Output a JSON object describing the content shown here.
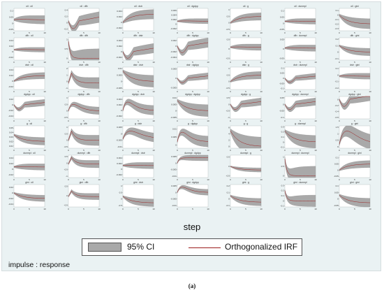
{
  "chart_data": {
    "type": "line",
    "rows": [
      "oil",
      "dfb",
      "dstr",
      "dgdpp",
      "g",
      "dunmpl",
      "gini"
    ],
    "cols": [
      "oil",
      "dfb",
      "dstr",
      "dgdpp",
      "g",
      "dunmpl",
      "gini"
    ],
    "x": [
      0,
      5,
      10
    ],
    "xlabel": "step",
    "legend": [
      "95% CI",
      "Orthogonalized IRF"
    ],
    "note": "impulse : response",
    "caption": "(a)",
    "colors": {
      "ci": "#a9a9a9",
      "irf": "#9b1c1c",
      "panel": "#ffffff",
      "background": "#eaf2f3"
    },
    "panels": [
      {
        "title": "oil : oil",
        "yticks": [
          "0.1",
          "0.05",
          "0",
          "-0.05"
        ],
        "ylim": [
          -0.06,
          0.12
        ],
        "shape": "flat",
        "amp": 0.06,
        "base": 0.02
      },
      {
        "title": "oil : dfb",
        "yticks": [
          "0.4",
          "0.2",
          "0",
          "-0.2"
        ],
        "ylim": [
          -0.25,
          0.45
        ],
        "shape": "dipRise",
        "amp": 0.3,
        "base": 0.05
      },
      {
        "title": "oil : dstr",
        "yticks": [
          "0.004",
          "0.002",
          "0",
          "-0.002"
        ],
        "ylim": [
          -0.003,
          0.005
        ],
        "shape": "rise",
        "amp": 0.003,
        "base": 0
      },
      {
        "title": "oil : dgdpp",
        "yticks": [
          "0.006",
          "0.004",
          "0.002",
          "0",
          "-0.002"
        ],
        "ylim": [
          -0.003,
          0.007
        ],
        "shape": "flat",
        "amp": 0.002,
        "base": 0.001
      },
      {
        "title": "oil : g",
        "yticks": [
          "1",
          "0.5",
          "0",
          "-0.5"
        ],
        "ylim": [
          -0.6,
          1.1
        ],
        "shape": "rise",
        "amp": 0.5,
        "base": 0
      },
      {
        "title": "oil : dunmpl",
        "yticks": [
          "0.1",
          "0.05",
          "0",
          "-0.05"
        ],
        "ylim": [
          -0.06,
          0.12
        ],
        "shape": "flat",
        "amp": 0.04,
        "base": 0.01
      },
      {
        "title": "oil : gini",
        "yticks": [
          "0.1",
          "0",
          "-0.1",
          "-0.2",
          "-0.3"
        ],
        "ylim": [
          -0.35,
          0.15
        ],
        "shape": "fall",
        "amp": 0.2,
        "base": 0
      },
      {
        "title": "dfb : oil",
        "yticks": [
          "0.04",
          "0.02",
          "0",
          "-0.02"
        ],
        "ylim": [
          -0.03,
          0.05
        ],
        "shape": "flat",
        "amp": 0.015,
        "base": 0.005
      },
      {
        "title": "dfb : dfb",
        "yticks": [
          "1",
          "0.5",
          "0"
        ],
        "ylim": [
          -0.1,
          1.1
        ],
        "shape": "drop",
        "amp": 0.9,
        "base": 0
      },
      {
        "title": "dfb : dstr",
        "yticks": [
          "0.004",
          "0.002",
          "0",
          "-0.002"
        ],
        "ylim": [
          -0.003,
          0.005
        ],
        "shape": "dipRise",
        "amp": 0.003,
        "base": 0
      },
      {
        "title": "dfb : dgdpp",
        "yticks": [
          "0.002",
          "0",
          "-0.002",
          "-0.004"
        ],
        "ylim": [
          -0.005,
          0.003
        ],
        "shape": "dipRise",
        "amp": 0.003,
        "base": 0
      },
      {
        "title": "dfb : g",
        "yticks": [
          "0.5",
          "0",
          "-0.5"
        ],
        "ylim": [
          -0.6,
          0.6
        ],
        "shape": "flat",
        "amp": 0.3,
        "base": 0.05
      },
      {
        "title": "dfb : dunmpl",
        "yticks": [
          "0.05",
          "0",
          "-0.05"
        ],
        "ylim": [
          -0.06,
          0.06
        ],
        "shape": "flat",
        "amp": 0.03,
        "base": 0
      },
      {
        "title": "dfb : gini",
        "yticks": [
          "0.2",
          "0.1",
          "0",
          "-0.1"
        ],
        "ylim": [
          -0.12,
          0.22
        ],
        "shape": "fall",
        "amp": 0.1,
        "base": 0.1
      },
      {
        "title": "dstr : oil",
        "yticks": [
          "0.04",
          "0.02",
          "0",
          "-0.02"
        ],
        "ylim": [
          -0.03,
          0.05
        ],
        "shape": "rise",
        "amp": 0.02,
        "base": 0
      },
      {
        "title": "dstr : dfb",
        "yticks": [
          "2",
          "1",
          "0",
          "-1"
        ],
        "ylim": [
          -1.2,
          2.2
        ],
        "shape": "spike",
        "amp": 1.5,
        "base": 0
      },
      {
        "title": "dstr : dstr",
        "yticks": [
          "0.01",
          "0.005",
          "0",
          "-0.005"
        ],
        "ylim": [
          -0.006,
          0.011
        ],
        "shape": "decay",
        "amp": 0.008,
        "base": 0
      },
      {
        "title": "dstr : dgdpp",
        "yticks": [
          "0.005",
          "0",
          "-0.005"
        ],
        "ylim": [
          -0.006,
          0.006
        ],
        "shape": "dipRise",
        "amp": 0.003,
        "base": 0
      },
      {
        "title": "dstr : g",
        "yticks": [
          "1",
          "0.5",
          "0",
          "-0.5"
        ],
        "ylim": [
          -0.6,
          1.1
        ],
        "shape": "rise",
        "amp": 0.5,
        "base": 0
      },
      {
        "title": "dstr : dunmpl",
        "yticks": [
          "0.1",
          "0.05",
          "0",
          "-0.05",
          "-0.1"
        ],
        "ylim": [
          -0.11,
          0.11
        ],
        "shape": "dipRise",
        "amp": 0.05,
        "base": 0
      },
      {
        "title": "dstr : gini",
        "yticks": [
          "0.1",
          "0",
          "-0.1",
          "-0.2"
        ],
        "ylim": [
          -0.22,
          0.12
        ],
        "shape": "flat",
        "amp": 0.08,
        "base": -0.03
      },
      {
        "title": "dgdpp : oil",
        "yticks": [
          "0.02",
          "0",
          "-0.02",
          "-0.04"
        ],
        "ylim": [
          -0.05,
          0.03
        ],
        "shape": "dipRise",
        "amp": 0.02,
        "base": 0
      },
      {
        "title": "dgdpp : dfb",
        "yticks": [
          "1",
          "0.5",
          "0",
          "-0.5"
        ],
        "ylim": [
          -0.6,
          1.1
        ],
        "shape": "humpDecay",
        "amp": 0.5,
        "base": 0
      },
      {
        "title": "dgdpp : dstr",
        "yticks": [
          "0.004",
          "0.002",
          "0",
          "-0.002"
        ],
        "ylim": [
          -0.003,
          0.005
        ],
        "shape": "humpDecay",
        "amp": 0.003,
        "base": 0
      },
      {
        "title": "dgdpp : dgdpp",
        "yticks": [
          "0.01",
          "0.005",
          "0",
          "-0.005"
        ],
        "ylim": [
          -0.006,
          0.011
        ],
        "shape": "decay",
        "amp": 0.008,
        "base": 0
      },
      {
        "title": "dgdpp : g",
        "yticks": [
          "0.5",
          "0",
          "-0.5",
          "-1"
        ],
        "ylim": [
          -1.1,
          0.6
        ],
        "shape": "dipRise",
        "amp": 0.5,
        "base": 0
      },
      {
        "title": "dgdpp : dunmpl",
        "yticks": [
          "0.05",
          "0",
          "-0.05",
          "-0.1"
        ],
        "ylim": [
          -0.11,
          0.06
        ],
        "shape": "dipRise",
        "amp": 0.05,
        "base": 0
      },
      {
        "title": "dgdpp : gini",
        "yticks": [
          "0",
          "-0.2",
          "-0.4",
          "-0.6"
        ],
        "ylim": [
          -0.65,
          0.1
        ],
        "shape": "dipRise",
        "amp": 0.3,
        "base": 0
      },
      {
        "title": "g : oil",
        "yticks": [
          "0.05",
          "0.04",
          "0.03",
          "0.02",
          "0.01"
        ],
        "ylim": [
          0.005,
          0.055
        ],
        "shape": "fall",
        "amp": 0.015,
        "base": 0.035
      },
      {
        "title": "g : dfb",
        "yticks": [
          "1",
          "0.5",
          "0",
          "-0.5"
        ],
        "ylim": [
          -0.6,
          1.1
        ],
        "shape": "spike",
        "amp": 0.7,
        "base": 0.1
      },
      {
        "title": "g : dstr",
        "yticks": [
          "0.005",
          "0",
          "-0.005",
          "-0.01"
        ],
        "ylim": [
          -0.011,
          0.006
        ],
        "shape": "hump",
        "amp": 0.006,
        "base": -0.004
      },
      {
        "title": "g : dgdpp",
        "yticks": [
          "0.01",
          "0.005",
          "0"
        ],
        "ylim": [
          -0.002,
          0.012
        ],
        "shape": "humpDecay",
        "amp": 0.006,
        "base": 0.002
      },
      {
        "title": "g : g",
        "yticks": [
          "6",
          "4",
          "2",
          "0"
        ],
        "ylim": [
          -0.5,
          6.5
        ],
        "shape": "decay",
        "amp": 5,
        "base": 0
      },
      {
        "title": "g : dunmpl",
        "yticks": [
          "0.3",
          "0.2",
          "0.1",
          "0",
          "-0.1"
        ],
        "ylim": [
          -0.12,
          0.32
        ],
        "shape": "decay",
        "amp": 0.22,
        "base": 0
      },
      {
        "title": "g : gini",
        "yticks": [
          "1.5",
          "1",
          "0.5",
          "0"
        ],
        "ylim": [
          -0.1,
          1.6
        ],
        "shape": "hump",
        "amp": 1,
        "base": 0.2
      },
      {
        "title": "dunmpl : oil",
        "yticks": [
          "0.04",
          "0.02",
          "0",
          "-0.02"
        ],
        "ylim": [
          -0.03,
          0.05
        ],
        "shape": "flat",
        "amp": 0.02,
        "base": 0.005
      },
      {
        "title": "dunmpl : dfb",
        "yticks": [
          "0.5",
          "0",
          "-0.5",
          "-1"
        ],
        "ylim": [
          -1.1,
          0.6
        ],
        "shape": "spike",
        "amp": 0.5,
        "base": 0
      },
      {
        "title": "dunmpl : dstr",
        "yticks": [
          "0.004",
          "0.002",
          "0",
          "-0.002"
        ],
        "ylim": [
          -0.003,
          0.005
        ],
        "shape": "flat",
        "amp": 0.002,
        "base": 0.001
      },
      {
        "title": "dunmpl : dgdpp",
        "yticks": [
          "0.005",
          "0",
          "-0.005",
          "-0.01"
        ],
        "ylim": [
          -0.011,
          0.006
        ],
        "shape": "stepUp",
        "amp": 0.004,
        "base": 0
      },
      {
        "title": "dunmpl : g",
        "yticks": [
          "0.5",
          "0",
          "-0.5"
        ],
        "ylim": [
          -0.6,
          0.6
        ],
        "shape": "fall",
        "amp": 0.2,
        "base": 0
      },
      {
        "title": "dunmpl : dunmpl",
        "yticks": [
          "1",
          "0.5",
          "0"
        ],
        "ylim": [
          -0.1,
          1.1
        ],
        "shape": "drop",
        "amp": 0.9,
        "base": 0
      },
      {
        "title": "dunmpl : gini",
        "yticks": [
          "0.1",
          "0.05",
          "0",
          "-0.05"
        ],
        "ylim": [
          -0.06,
          0.12
        ],
        "shape": "rise",
        "amp": 0.05,
        "base": 0
      },
      {
        "title": "gini : oil",
        "yticks": [
          "0.02",
          "0",
          "-0.02",
          "-0.04"
        ],
        "ylim": [
          -0.05,
          0.03
        ],
        "shape": "fall",
        "amp": 0.02,
        "base": 0
      },
      {
        "title": "gini : dfb",
        "yticks": [
          "0.5",
          "0",
          "-0.5"
        ],
        "ylim": [
          -0.6,
          0.6
        ],
        "shape": "spike",
        "amp": 0.3,
        "base": 0
      },
      {
        "title": "gini : dstr",
        "yticks": [
          "1",
          "0.5",
          "0",
          "-0.5"
        ],
        "ylim": [
          -0.6,
          1.1
        ],
        "shape": "fall",
        "amp": 0.5,
        "base": 0.2
      },
      {
        "title": "gini : dgdpp",
        "yticks": [
          "0.005",
          "0",
          "-0.005",
          "-0.01"
        ],
        "ylim": [
          -0.011,
          0.006
        ],
        "shape": "humpDecay",
        "amp": 0.004,
        "base": 0
      },
      {
        "title": "gini : g",
        "yticks": [
          "0.2",
          "0.1",
          "0",
          "-0.1"
        ],
        "ylim": [
          -0.12,
          0.22
        ],
        "shape": "fall",
        "amp": 0.1,
        "base": 0.05
      },
      {
        "title": "gini : dunmpl",
        "yticks": [
          "0.3",
          "0.2",
          "0.1",
          "0",
          "-0.1"
        ],
        "ylim": [
          -0.12,
          0.32
        ],
        "shape": "drop",
        "amp": 0.2,
        "base": 0
      },
      {
        "title": "gini : gini",
        "yticks": [
          "0.1",
          "0.05",
          "0",
          "-0.05"
        ],
        "ylim": [
          -0.06,
          0.11
        ],
        "shape": "fall",
        "amp": 0.06,
        "base": 0.03
      }
    ]
  }
}
